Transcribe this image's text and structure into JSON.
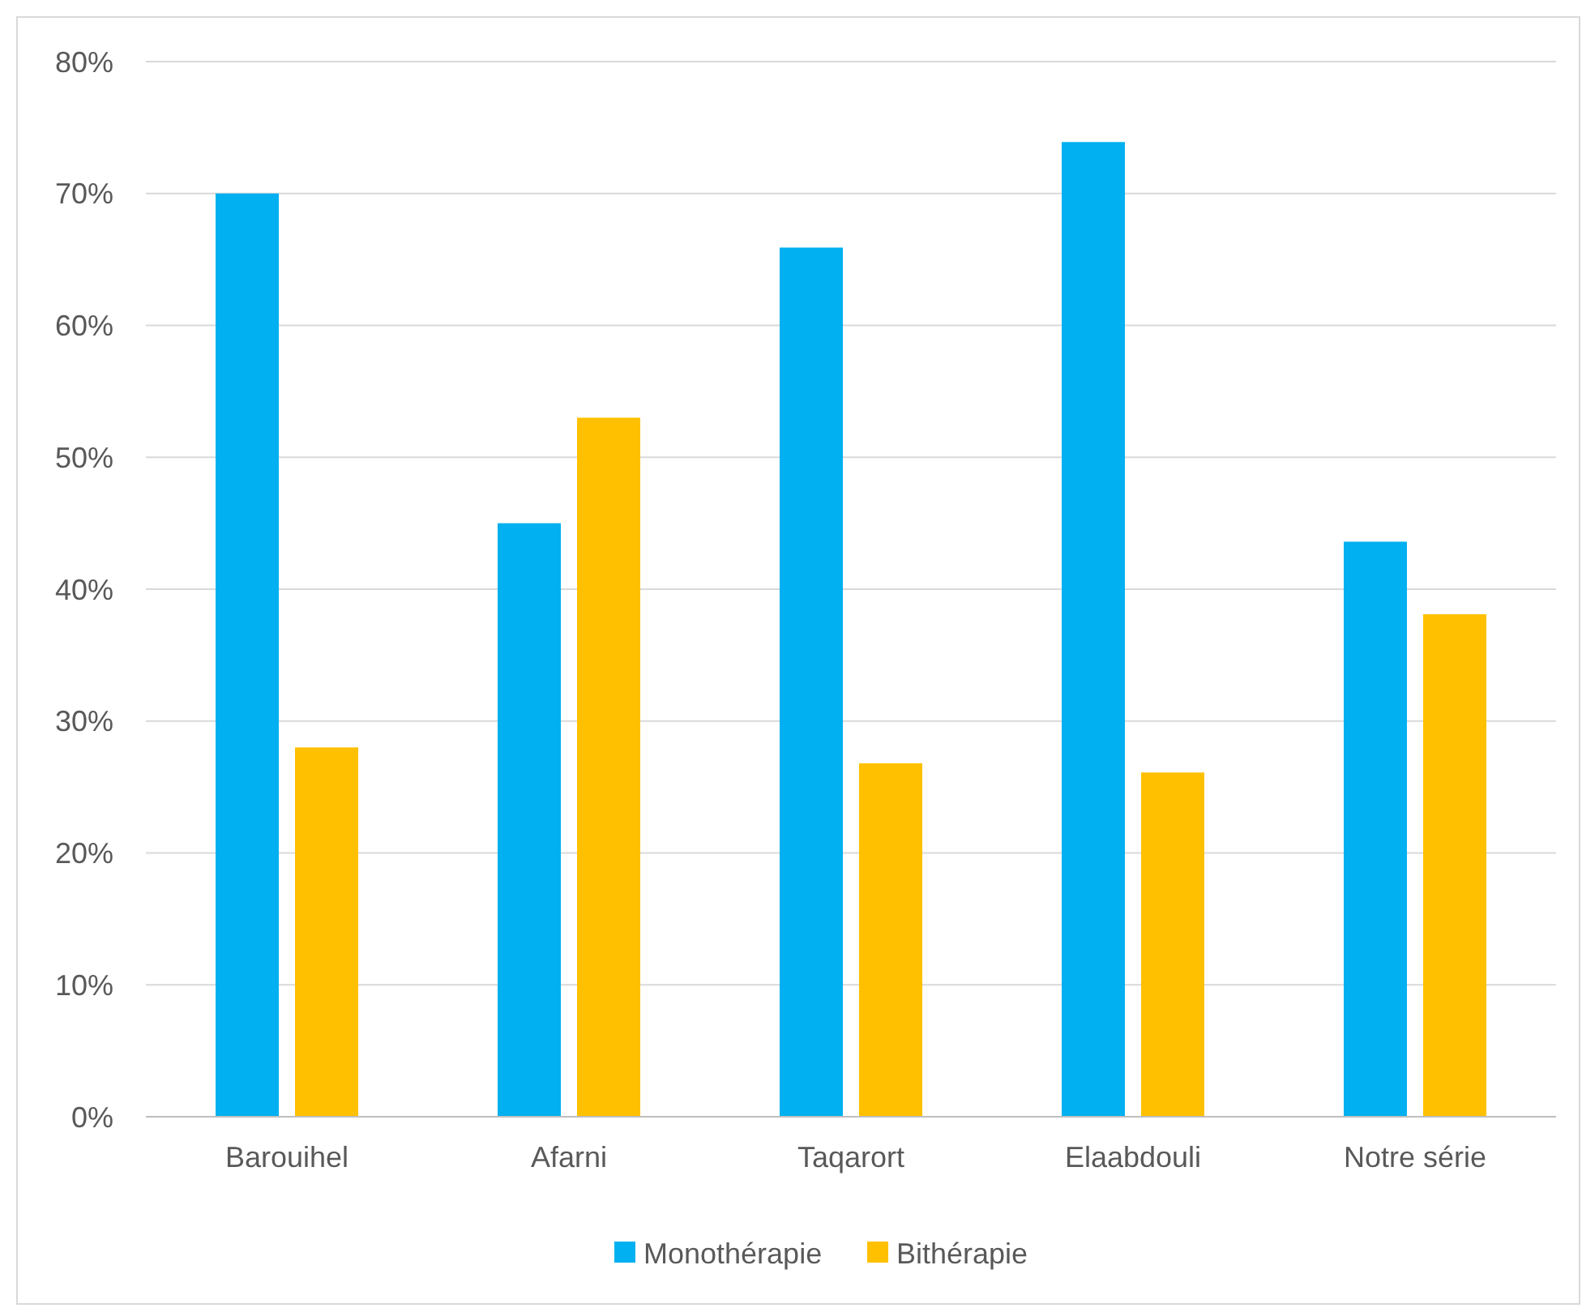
{
  "chart_data": {
    "type": "bar",
    "categories": [
      "Barouihel",
      "Afarni",
      "Taqarort",
      "Elaabdouli",
      "Notre série"
    ],
    "series": [
      {
        "name": "Monothérapie",
        "color": "#00b0f0",
        "values": [
          70,
          45,
          65.9,
          73.9,
          43.6
        ]
      },
      {
        "name": "Bithérapie",
        "color": "#ffc000",
        "values": [
          28,
          53,
          26.8,
          26.1,
          38.1
        ]
      }
    ],
    "ylim": [
      0,
      80
    ],
    "yticks": [
      {
        "value": 0,
        "label": "0%"
      },
      {
        "value": 10,
        "label": "10%"
      },
      {
        "value": 20,
        "label": "20%"
      },
      {
        "value": 30,
        "label": "30%"
      },
      {
        "value": 40,
        "label": "40%"
      },
      {
        "value": 50,
        "label": "50%"
      },
      {
        "value": 60,
        "label": "60%"
      },
      {
        "value": 70,
        "label": "70%"
      },
      {
        "value": 80,
        "label": "80%"
      }
    ],
    "grid": "y",
    "legend": "bottom"
  }
}
